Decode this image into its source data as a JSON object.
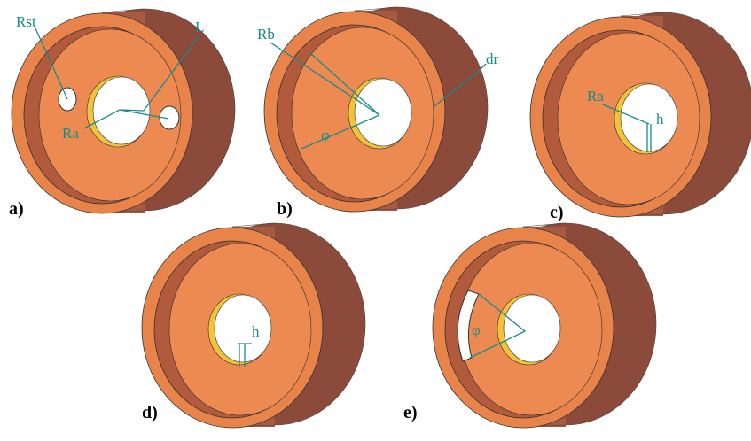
{
  "panels": [
    {
      "label": "a)",
      "annotations": [
        "Rst",
        "L",
        "Ra"
      ]
    },
    {
      "label": "b)",
      "annotations": [
        "Rb",
        "dr",
        "φ"
      ]
    },
    {
      "label": "c)",
      "annotations": [
        "Ra",
        "h"
      ]
    },
    {
      "label": "d)",
      "annotations": [
        "h"
      ]
    },
    {
      "label": "e)",
      "annotations": [
        "φ"
      ]
    }
  ]
}
